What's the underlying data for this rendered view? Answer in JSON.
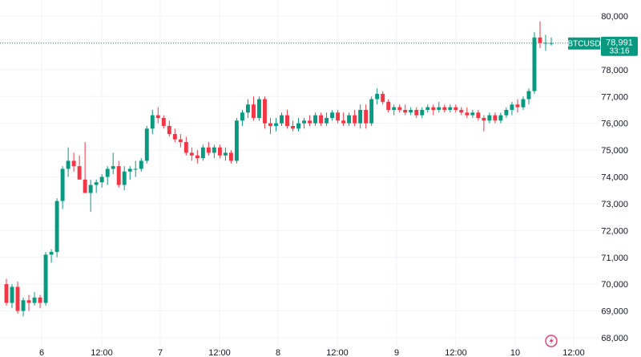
{
  "chart_data": {
    "type": "candlestick",
    "symbol": "BTCUSD",
    "last_price": "78,991",
    "countdown": "33:16",
    "ylim": [
      67800,
      80300
    ],
    "y_ticks": [
      {
        "value": 80000,
        "label": "80,000"
      },
      {
        "value": 79000,
        "label": "79,000"
      },
      {
        "value": 78000,
        "label": "78,000"
      },
      {
        "value": 77000,
        "label": "77,000"
      },
      {
        "value": 76000,
        "label": "76,000"
      },
      {
        "value": 75000,
        "label": "75,000"
      },
      {
        "value": 74000,
        "label": "74,000"
      },
      {
        "value": 73000,
        "label": "73,000"
      },
      {
        "value": 72000,
        "label": "72,000"
      },
      {
        "value": 71000,
        "label": "71,000"
      },
      {
        "value": 70000,
        "label": "70,000"
      },
      {
        "value": 69000,
        "label": "69,000"
      },
      {
        "value": 68000,
        "label": "68,000"
      }
    ],
    "x_ticks": [
      "6",
      "12:00",
      "7",
      "12:00",
      "8",
      "12:00",
      "9",
      "12:00",
      "10",
      "12:00"
    ],
    "last_price_value": 78991,
    "candles": [
      [
        70000,
        70200,
        69200,
        69300
      ],
      [
        69300,
        70000,
        69100,
        69900
      ],
      [
        69900,
        70100,
        68900,
        69000
      ],
      [
        69000,
        69500,
        68800,
        69400
      ],
      [
        69400,
        69600,
        69000,
        69300
      ],
      [
        69300,
        69700,
        69200,
        69500
      ],
      [
        69500,
        69600,
        69100,
        69300
      ],
      [
        69300,
        71200,
        69200,
        71100
      ],
      [
        71100,
        71300,
        70800,
        71200
      ],
      [
        71200,
        73200,
        71000,
        73100
      ],
      [
        73100,
        74400,
        72800,
        74300
      ],
      [
        74300,
        75100,
        74000,
        74600
      ],
      [
        74600,
        74900,
        74200,
        74400
      ],
      [
        74400,
        74800,
        73900,
        73900
      ],
      [
        73900,
        75300,
        73400,
        73400
      ],
      [
        73400,
        73900,
        72700,
        73700
      ],
      [
        73700,
        73900,
        73400,
        73800
      ],
      [
        73800,
        74100,
        73600,
        74000
      ],
      [
        74000,
        74400,
        73700,
        74300
      ],
      [
        74300,
        74900,
        74100,
        74400
      ],
      [
        74400,
        74600,
        73600,
        73700
      ],
      [
        73700,
        74400,
        73500,
        74200
      ],
      [
        74200,
        74400,
        73900,
        74300
      ],
      [
        74300,
        74600,
        74000,
        74300
      ],
      [
        74300,
        74700,
        74200,
        74600
      ],
      [
        74600,
        75900,
        74500,
        75800
      ],
      [
        75800,
        76500,
        75600,
        76300
      ],
      [
        76300,
        76600,
        76000,
        76200
      ],
      [
        76200,
        76300,
        75800,
        75900
      ],
      [
        75900,
        76100,
        75500,
        75600
      ],
      [
        75600,
        75800,
        75300,
        75400
      ],
      [
        75400,
        75600,
        75100,
        75300
      ],
      [
        75300,
        75500,
        74800,
        74900
      ],
      [
        74900,
        75100,
        74600,
        74800
      ],
      [
        74800,
        75000,
        74500,
        74700
      ],
      [
        74700,
        75200,
        74600,
        75100
      ],
      [
        75100,
        75300,
        74800,
        74900
      ],
      [
        74900,
        75200,
        74700,
        75100
      ],
      [
        75100,
        75200,
        74700,
        74800
      ],
      [
        74800,
        75100,
        74600,
        74900
      ],
      [
        74900,
        75000,
        74500,
        74600
      ],
      [
        74600,
        76200,
        74500,
        76100
      ],
      [
        76100,
        76500,
        75900,
        76400
      ],
      [
        76400,
        76900,
        76200,
        76700
      ],
      [
        76700,
        77000,
        76100,
        76200
      ],
      [
        76200,
        77000,
        76100,
        76900
      ],
      [
        76900,
        77000,
        75800,
        76000
      ],
      [
        76000,
        76200,
        75600,
        75900
      ],
      [
        75900,
        76200,
        75700,
        76000
      ],
      [
        76000,
        76400,
        75900,
        76300
      ],
      [
        76300,
        76500,
        75800,
        75900
      ],
      [
        75900,
        76100,
        75700,
        75800
      ],
      [
        75800,
        76200,
        75700,
        76000
      ],
      [
        76000,
        76200,
        75800,
        76100
      ],
      [
        76100,
        76300,
        75900,
        76000
      ],
      [
        76000,
        76400,
        75900,
        76300
      ],
      [
        76300,
        76400,
        75900,
        76000
      ],
      [
        76000,
        76400,
        75900,
        76200
      ],
      [
        76200,
        76500,
        76100,
        76400
      ],
      [
        76400,
        76500,
        76000,
        76100
      ],
      [
        76100,
        76400,
        75900,
        76000
      ],
      [
        76000,
        76400,
        75900,
        76300
      ],
      [
        76300,
        76500,
        75900,
        76000
      ],
      [
        76000,
        76700,
        75800,
        76500
      ],
      [
        76500,
        76700,
        75800,
        76000
      ],
      [
        76000,
        77000,
        75900,
        76900
      ],
      [
        76900,
        77300,
        76700,
        77100
      ],
      [
        77100,
        77200,
        76700,
        76800
      ],
      [
        76800,
        76900,
        76400,
        76500
      ],
      [
        76500,
        76700,
        76300,
        76600
      ],
      [
        76600,
        76700,
        76400,
        76500
      ],
      [
        76500,
        76700,
        76300,
        76400
      ],
      [
        76400,
        76600,
        76300,
        76500
      ],
      [
        76500,
        76600,
        76200,
        76300
      ],
      [
        76300,
        76600,
        76200,
        76500
      ],
      [
        76500,
        76700,
        76400,
        76600
      ],
      [
        76600,
        76700,
        76300,
        76500
      ],
      [
        76500,
        76800,
        76400,
        76600
      ],
      [
        76600,
        76700,
        76400,
        76500
      ],
      [
        76500,
        76700,
        76400,
        76600
      ],
      [
        76600,
        76700,
        76400,
        76500
      ],
      [
        76500,
        76600,
        76300,
        76400
      ],
      [
        76400,
        76600,
        76200,
        76300
      ],
      [
        76300,
        76500,
        76200,
        76400
      ],
      [
        76400,
        76500,
        76100,
        76200
      ],
      [
        76200,
        76300,
        75700,
        76100
      ],
      [
        76100,
        76400,
        76000,
        76300
      ],
      [
        76300,
        76400,
        76000,
        76100
      ],
      [
        76100,
        76400,
        76000,
        76300
      ],
      [
        76300,
        76600,
        76200,
        76500
      ],
      [
        76500,
        76800,
        76300,
        76700
      ],
      [
        76700,
        76900,
        76400,
        76600
      ],
      [
        76600,
        77000,
        76500,
        76900
      ],
      [
        76900,
        77300,
        76700,
        77200
      ],
      [
        77200,
        79400,
        77100,
        79200
      ],
      [
        79200,
        79800,
        78800,
        79000
      ],
      [
        79000,
        79300,
        78700,
        79000
      ],
      [
        78991,
        79200,
        78900,
        78991
      ]
    ]
  },
  "icons": {
    "lightning": "lightning-icon"
  },
  "colors": {
    "up": "#089981",
    "down": "#f23645",
    "grid": "#f0f3fa",
    "axis_text": "#131722",
    "price_line": "#089981",
    "icon": "#e0457b"
  }
}
